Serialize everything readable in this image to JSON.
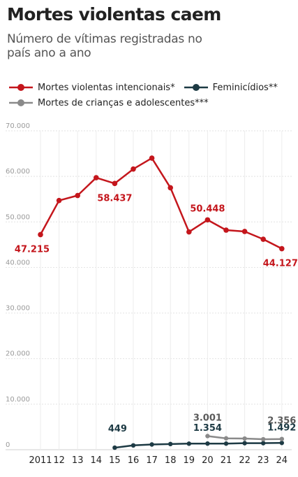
{
  "chart_data": {
    "type": "line",
    "title": "Mortes violentas caem",
    "subtitle": "Número de vítimas registradas no país ano a ano",
    "xlabel": "",
    "ylabel": "",
    "ylim": [
      0,
      70000
    ],
    "grid": true,
    "legend_position": "top",
    "y_ticks": [
      0,
      10000,
      20000,
      30000,
      40000,
      50000,
      60000,
      70000
    ],
    "y_tick_labels": [
      "0",
      "10.000",
      "20.000",
      "30.000",
      "40.000",
      "50.000",
      "60.000",
      "70.000"
    ],
    "categories": [
      "2011",
      "12",
      "13",
      "14",
      "15",
      "16",
      "17",
      "18",
      "19",
      "20",
      "21",
      "22",
      "23",
      "24"
    ],
    "series": [
      {
        "name": "Mortes violentas intencionais*",
        "color": "#c4161c",
        "values": [
          47215,
          54700,
          55800,
          59700,
          58437,
          61600,
          64000,
          57500,
          47800,
          50448,
          48200,
          47900,
          46200,
          44127
        ],
        "labels": [
          {
            "index": 0,
            "text": "47.215",
            "pos": "below"
          },
          {
            "index": 4,
            "text": "58.437",
            "pos": "below"
          },
          {
            "index": 9,
            "text": "50.448",
            "pos": "above"
          },
          {
            "index": 13,
            "text": "44.127",
            "pos": "below"
          }
        ]
      },
      {
        "name": "Feminicídios**",
        "color": "#1d3a44",
        "values": [
          null,
          null,
          null,
          null,
          449,
          950,
          1150,
          1250,
          1330,
          1354,
          1350,
          1440,
          1440,
          1492
        ],
        "labels": [
          {
            "index": 4,
            "text": "449",
            "pos": "above"
          },
          {
            "index": 9,
            "text": "1.354",
            "pos": "above"
          },
          {
            "index": 13,
            "text": "1.492",
            "pos": "above"
          }
        ]
      },
      {
        "name": "Mortes de crianças e adolescentes***",
        "color": "#8a8a8a",
        "values": [
          null,
          null,
          null,
          null,
          null,
          null,
          null,
          null,
          null,
          3001,
          2500,
          2450,
          2300,
          2356
        ],
        "labels": [
          {
            "index": 9,
            "text": "3.001",
            "pos": "above"
          },
          {
            "index": 13,
            "text": "2.356",
            "pos": "above"
          }
        ]
      }
    ]
  }
}
